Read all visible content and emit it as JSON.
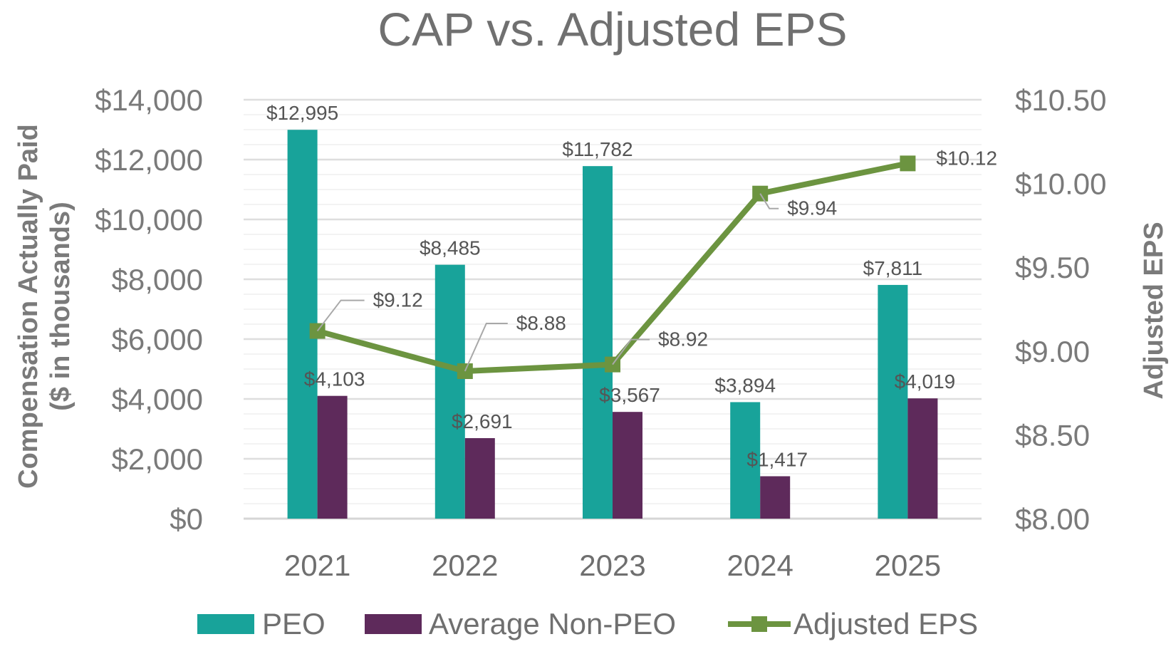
{
  "chart_data": {
    "type": "bar",
    "title": "CAP vs. Adjusted EPS",
    "categories": [
      "2021",
      "2022",
      "2023",
      "2024",
      "2025"
    ],
    "series": [
      {
        "name": "PEO",
        "type": "bar",
        "axis": "left",
        "color": "#18a39a",
        "values": [
          12995,
          8485,
          11782,
          3894,
          7811
        ],
        "labels": [
          "$12,995",
          "$8,485",
          "$11,782",
          "$3,894",
          "$7,811"
        ]
      },
      {
        "name": "Average Non-PEO",
        "type": "bar",
        "axis": "left",
        "color": "#5e2a5b",
        "values": [
          4103,
          2691,
          3567,
          1417,
          4019
        ],
        "labels": [
          "$4,103",
          "$2,691",
          "$3,567",
          "$1,417",
          "$4,019"
        ]
      },
      {
        "name": "Adjusted EPS",
        "type": "line",
        "axis": "right",
        "color": "#6c9440",
        "values": [
          9.12,
          8.88,
          8.92,
          9.94,
          10.12
        ],
        "labels": [
          "$9.12",
          "$8.88",
          "$8.92",
          "$9.94",
          "$10.12"
        ]
      }
    ],
    "y_left": {
      "label_line1": "Compensation Actually Paid",
      "label_line2": "($ in thousands)",
      "min": 0,
      "max": 14000,
      "major_step": 2000,
      "minor_step": 500,
      "tick_labels": [
        "$0",
        "$2,000",
        "$4,000",
        "$6,000",
        "$8,000",
        "$10,000",
        "$12,000",
        "$14,000"
      ]
    },
    "y_right": {
      "label": "Adjusted EPS",
      "min": 8.0,
      "max": 10.5,
      "step": 0.5,
      "tick_labels": [
        "$8.00",
        "$8.50",
        "$9.00",
        "$9.50",
        "$10.00",
        "$10.50"
      ]
    },
    "legend_position": "bottom",
    "grid": true
  }
}
